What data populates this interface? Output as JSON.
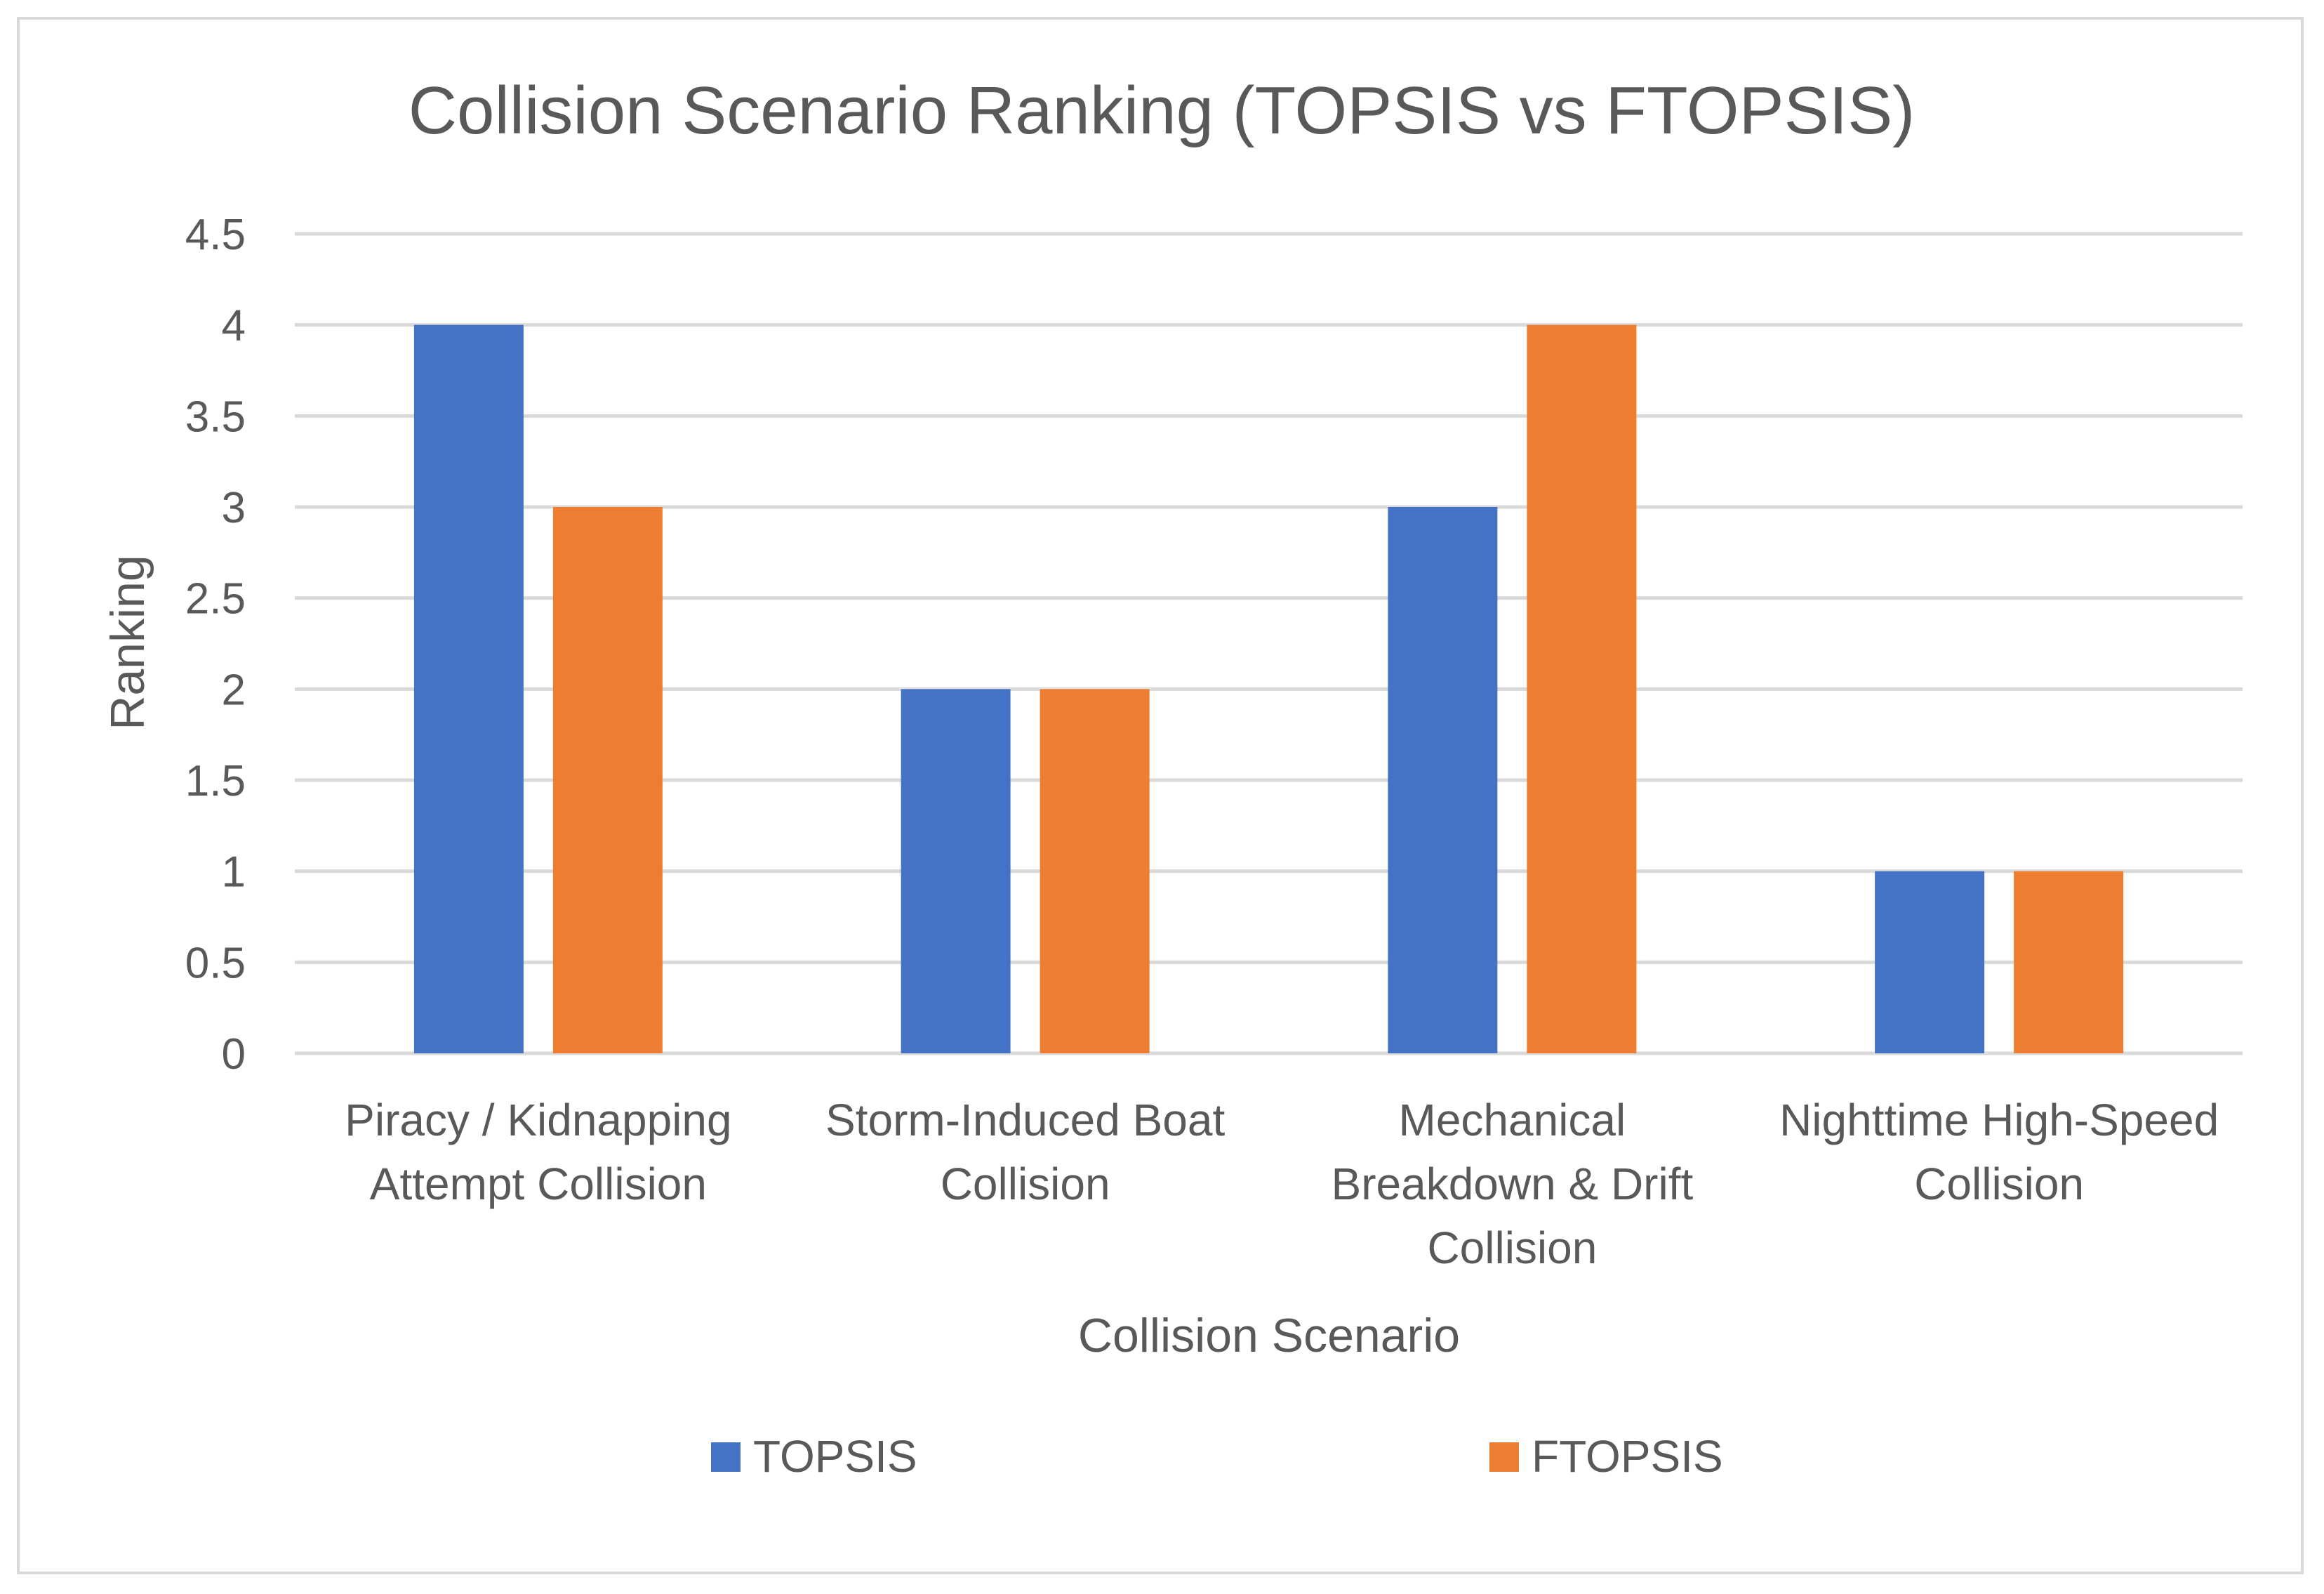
{
  "chart_data": {
    "type": "bar",
    "title": "Collision Scenario Ranking (TOPSIS vs FTOPSIS)",
    "xlabel": "Collision Scenario",
    "ylabel": "Ranking",
    "categories": [
      [
        "Piracy / Kidnapping",
        "Attempt Collision"
      ],
      [
        "Storm-Induced Boat",
        "Collision"
      ],
      [
        "Mechanical",
        "Breakdown & Drift",
        "Collision"
      ],
      [
        "Nighttime High-Speed",
        "Collision"
      ]
    ],
    "series": [
      {
        "name": "TOPSIS",
        "color": "#4472C4",
        "values": [
          4,
          2,
          3,
          1
        ]
      },
      {
        "name": "FTOPSIS",
        "color": "#ED7D31",
        "values": [
          3,
          2,
          4,
          1
        ]
      }
    ],
    "ylim": [
      0,
      4.5
    ],
    "yticks": [
      "0",
      "0.5",
      "1",
      "1.5",
      "2",
      "2.5",
      "3",
      "3.5",
      "4",
      "4.5"
    ],
    "grid": true,
    "legend": "bottom"
  }
}
